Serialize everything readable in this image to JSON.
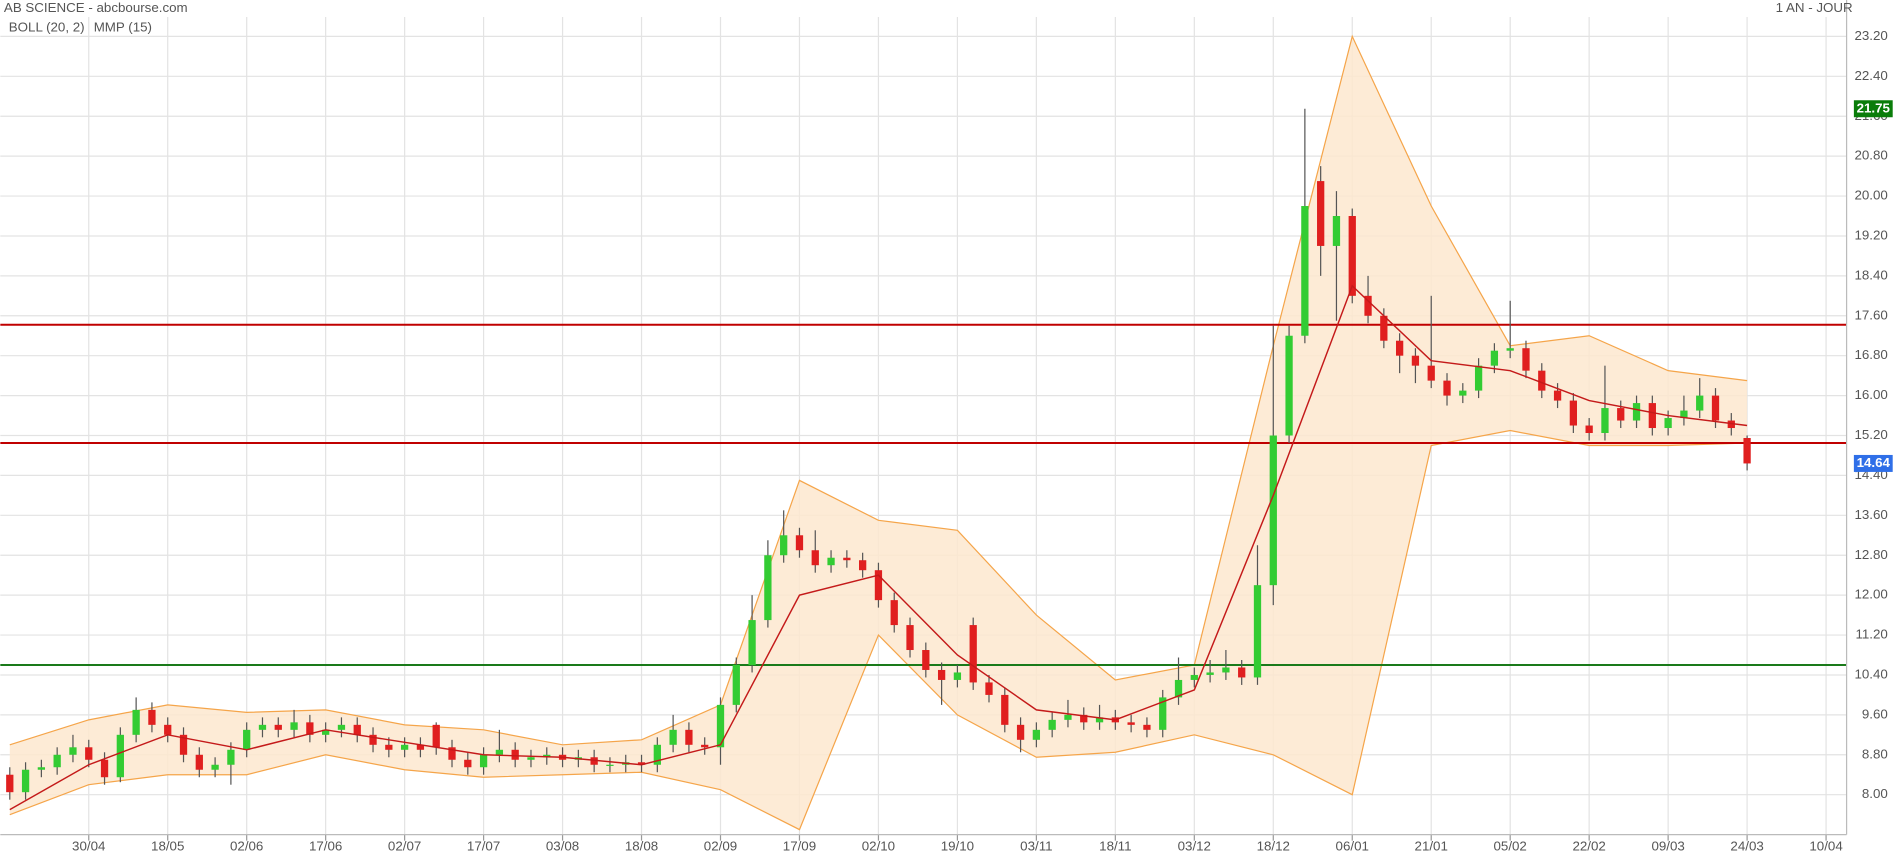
{
  "chart_data": {
    "type": "candlestick",
    "title": "AB SCIENCE - abcbourse.com",
    "period": "1 AN - JOUR",
    "up_color": "#33cc33",
    "down_color": "#e01f1f",
    "wick_color": "#555555",
    "grid": true,
    "xlim": [
      -0.6,
      116.3
    ],
    "ylim": [
      7.2,
      23.93
    ],
    "xticks": [
      {
        "value": 5,
        "label": "30/04"
      },
      {
        "value": 10,
        "label": "18/05"
      },
      {
        "value": 15,
        "label": "02/06"
      },
      {
        "value": 20,
        "label": "17/06"
      },
      {
        "value": 25,
        "label": "02/07"
      },
      {
        "value": 30,
        "label": "17/07"
      },
      {
        "value": 35,
        "label": "03/08"
      },
      {
        "value": 40,
        "label": "18/08"
      },
      {
        "value": 45,
        "label": "02/09"
      },
      {
        "value": 50,
        "label": "17/09"
      },
      {
        "value": 55,
        "label": "02/10"
      },
      {
        "value": 60,
        "label": "19/10"
      },
      {
        "value": 65,
        "label": "03/11"
      },
      {
        "value": 70,
        "label": "18/11"
      },
      {
        "value": 75,
        "label": "03/12"
      },
      {
        "value": 80,
        "label": "18/12"
      },
      {
        "value": 85,
        "label": "06/01"
      },
      {
        "value": 90,
        "label": "21/01"
      },
      {
        "value": 95,
        "label": "05/02"
      },
      {
        "value": 100,
        "label": "22/02"
      },
      {
        "value": 105,
        "label": "09/03"
      },
      {
        "value": 110,
        "label": "24/03"
      },
      {
        "value": 115,
        "label": "10/04"
      }
    ],
    "yticks": [
      {
        "value": 8,
        "label": "8.00"
      },
      {
        "value": 8.8,
        "label": "8.80"
      },
      {
        "value": 9.6,
        "label": "9.60"
      },
      {
        "value": 10.4,
        "label": "10.40"
      },
      {
        "value": 11.2,
        "label": "11.20"
      },
      {
        "value": 12,
        "label": "12.00"
      },
      {
        "value": 12.8,
        "label": "12.80"
      },
      {
        "value": 13.6,
        "label": "13.60"
      },
      {
        "value": 14.4,
        "label": "14.40"
      },
      {
        "value": 15.2,
        "label": "15.20"
      },
      {
        "value": 16,
        "label": "16.00"
      },
      {
        "value": 16.8,
        "label": "16.80"
      },
      {
        "value": 17.6,
        "label": "17.60"
      },
      {
        "value": 18.4,
        "label": "18.40"
      },
      {
        "value": 19.2,
        "label": "19.20"
      },
      {
        "value": 20,
        "label": "20.00"
      },
      {
        "value": 20.8,
        "label": "20.80"
      },
      {
        "value": 21.6,
        "label": "21.60"
      },
      {
        "value": 22.4,
        "label": "22.40"
      },
      {
        "value": 23.2,
        "label": "23.20"
      }
    ],
    "open": [
      8.4,
      8.05,
      8.5,
      8.55,
      8.8,
      8.95,
      8.7,
      8.35,
      9.2,
      9.7,
      9.4,
      9.2,
      8.8,
      8.5,
      8.6,
      8.9,
      9.3,
      9.4,
      9.3,
      9.45,
      9.2,
      9.3,
      9.4,
      9.2,
      9.0,
      8.9,
      9.0,
      9.4,
      8.95,
      8.7,
      8.55,
      8.8,
      8.9,
      8.7,
      8.75,
      8.8,
      8.7,
      8.75,
      8.6,
      8.6,
      8.65,
      8.6,
      9.0,
      9.3,
      9.0,
      8.95,
      9.8,
      10.6,
      11.5,
      12.8,
      13.2,
      12.9,
      12.6,
      12.75,
      12.7,
      12.5,
      11.9,
      11.4,
      10.9,
      10.5,
      10.3,
      11.4,
      10.25,
      10.0,
      9.4,
      9.1,
      9.3,
      9.5,
      9.6,
      9.45,
      9.55,
      9.45,
      9.4,
      9.3,
      9.95,
      10.3,
      10.4,
      10.45,
      10.55,
      10.35,
      12.2,
      15.2,
      17.2,
      20.3,
      19.0,
      19.6,
      18.0,
      17.6,
      17.1,
      16.8,
      16.6,
      16.3,
      16.0,
      16.1,
      16.6,
      16.9,
      16.95,
      16.5,
      16.1,
      15.9,
      15.4,
      15.25,
      15.75,
      15.5,
      15.85,
      15.35,
      15.55,
      15.7,
      16.0,
      15.5,
      15.15
    ],
    "high": [
      8.55,
      8.65,
      8.7,
      8.95,
      9.2,
      9.1,
      8.85,
      9.35,
      9.95,
      9.85,
      9.55,
      9.35,
      8.95,
      8.75,
      9.05,
      9.45,
      9.55,
      9.55,
      9.7,
      9.6,
      9.45,
      9.55,
      9.55,
      9.35,
      9.15,
      9.15,
      9.15,
      9.45,
      9.1,
      8.85,
      8.95,
      9.3,
      9.05,
      8.9,
      8.95,
      8.95,
      8.9,
      8.9,
      8.75,
      8.8,
      8.8,
      9.15,
      9.6,
      9.45,
      9.15,
      9.95,
      10.75,
      12.0,
      13.1,
      13.7,
      13.35,
      13.3,
      12.9,
      12.9,
      12.85,
      12.65,
      12.05,
      11.55,
      11.05,
      10.65,
      10.6,
      11.55,
      10.4,
      10.15,
      9.55,
      9.45,
      9.65,
      9.9,
      9.75,
      9.8,
      9.7,
      9.6,
      9.55,
      10.1,
      10.75,
      10.55,
      10.7,
      10.9,
      10.7,
      13.0,
      17.4,
      17.4,
      21.75,
      20.6,
      20.1,
      19.75,
      18.4,
      17.75,
      17.25,
      16.95,
      18.0,
      16.45,
      16.25,
      16.75,
      17.05,
      17.9,
      17.1,
      16.65,
      16.25,
      16.05,
      15.55,
      16.6,
      15.9,
      16.0,
      16.0,
      15.7,
      16.0,
      16.35,
      16.15,
      15.65,
      15.2
    ],
    "low": [
      7.9,
      7.9,
      8.35,
      8.4,
      8.65,
      8.55,
      8.2,
      8.25,
      9.05,
      9.25,
      9.05,
      8.65,
      8.35,
      8.35,
      8.2,
      8.75,
      9.15,
      9.15,
      9.15,
      9.05,
      9.05,
      9.15,
      9.05,
      8.85,
      8.75,
      8.75,
      8.75,
      8.8,
      8.55,
      8.4,
      8.4,
      8.65,
      8.55,
      8.55,
      8.6,
      8.55,
      8.55,
      8.45,
      8.45,
      8.45,
      8.45,
      8.45,
      8.85,
      8.85,
      8.8,
      8.6,
      9.65,
      10.45,
      11.35,
      12.65,
      12.75,
      12.45,
      12.45,
      12.55,
      12.35,
      11.75,
      11.25,
      10.75,
      10.35,
      9.8,
      10.15,
      10.1,
      9.85,
      9.25,
      8.85,
      8.95,
      9.15,
      9.35,
      9.3,
      9.3,
      9.3,
      9.25,
      9.15,
      9.15,
      9.8,
      10.15,
      10.25,
      10.3,
      10.2,
      10.2,
      11.8,
      15.05,
      17.05,
      18.4,
      17.5,
      17.85,
      17.45,
      16.95,
      16.45,
      16.25,
      16.15,
      15.8,
      15.85,
      15.95,
      16.45,
      16.75,
      16.35,
      15.95,
      15.75,
      15.25,
      15.1,
      15.1,
      15.35,
      15.35,
      15.2,
      15.2,
      15.4,
      15.55,
      15.35,
      15.2,
      14.5
    ],
    "close": [
      8.05,
      8.5,
      8.55,
      8.8,
      8.95,
      8.7,
      8.35,
      9.2,
      9.7,
      9.4,
      9.2,
      8.8,
      8.5,
      8.6,
      8.9,
      9.3,
      9.4,
      9.3,
      9.45,
      9.2,
      9.3,
      9.4,
      9.2,
      9.0,
      8.9,
      9.0,
      8.9,
      8.95,
      8.7,
      8.55,
      8.8,
      8.9,
      8.7,
      8.75,
      8.8,
      8.7,
      8.75,
      8.6,
      8.6,
      8.65,
      8.6,
      9.0,
      9.3,
      9.0,
      8.95,
      9.8,
      10.6,
      11.5,
      12.8,
      13.2,
      12.9,
      12.6,
      12.75,
      12.7,
      12.5,
      11.9,
      11.4,
      10.9,
      10.5,
      10.3,
      10.45,
      10.25,
      10.0,
      9.4,
      9.1,
      9.3,
      9.5,
      9.6,
      9.45,
      9.55,
      9.45,
      9.4,
      9.3,
      9.95,
      10.3,
      10.4,
      10.45,
      10.55,
      10.35,
      12.2,
      15.2,
      17.2,
      19.8,
      19.0,
      19.6,
      18.0,
      17.6,
      17.1,
      16.8,
      16.6,
      16.3,
      16.0,
      16.1,
      16.6,
      16.9,
      16.95,
      16.5,
      16.1,
      15.9,
      15.4,
      15.25,
      15.75,
      15.5,
      15.85,
      15.35,
      15.55,
      15.7,
      16.0,
      15.5,
      15.35,
      14.64
    ],
    "indicators": {
      "x": [
        0,
        5,
        10,
        15,
        20,
        25,
        30,
        35,
        40,
        45,
        50,
        55,
        60,
        65,
        70,
        75,
        80,
        85,
        90,
        95,
        100,
        105,
        110
      ],
      "boll": {
        "name": "BOLL (20, 2)",
        "color": "#f5a54a",
        "fill": "#fde7cf",
        "upper": [
          9.0,
          9.5,
          9.8,
          9.65,
          9.7,
          9.4,
          9.3,
          9.0,
          9.1,
          9.8,
          14.3,
          13.5,
          13.3,
          11.6,
          10.3,
          10.6,
          17.0,
          23.2,
          19.8,
          17.0,
          17.2,
          16.5,
          16.3
        ],
        "lower": [
          7.6,
          8.2,
          8.4,
          8.4,
          8.8,
          8.5,
          8.35,
          8.4,
          8.45,
          8.1,
          7.3,
          11.2,
          9.6,
          8.75,
          8.85,
          9.2,
          8.8,
          8.0,
          15.0,
          15.3,
          15.0,
          15.0,
          15.05
        ]
      },
      "mmp": {
        "name": "MMP (15)",
        "color": "#c41a1a",
        "values": [
          7.7,
          8.6,
          9.2,
          8.9,
          9.3,
          9.05,
          8.8,
          8.75,
          8.6,
          9.0,
          12.0,
          12.4,
          10.8,
          9.7,
          9.5,
          10.1,
          14.0,
          18.2,
          16.7,
          16.5,
          15.9,
          15.6,
          15.4
        ]
      }
    },
    "levels": [
      {
        "value": 17.42,
        "color": "#c00000"
      },
      {
        "value": 15.05,
        "color": "#c00000"
      },
      {
        "value": 10.6,
        "color": "#1a7a1a"
      }
    ],
    "price_labels": [
      {
        "value": 21.75,
        "color": "#0a7d0a"
      },
      {
        "value": 14.64,
        "color": "#2f6fe8"
      }
    ]
  }
}
